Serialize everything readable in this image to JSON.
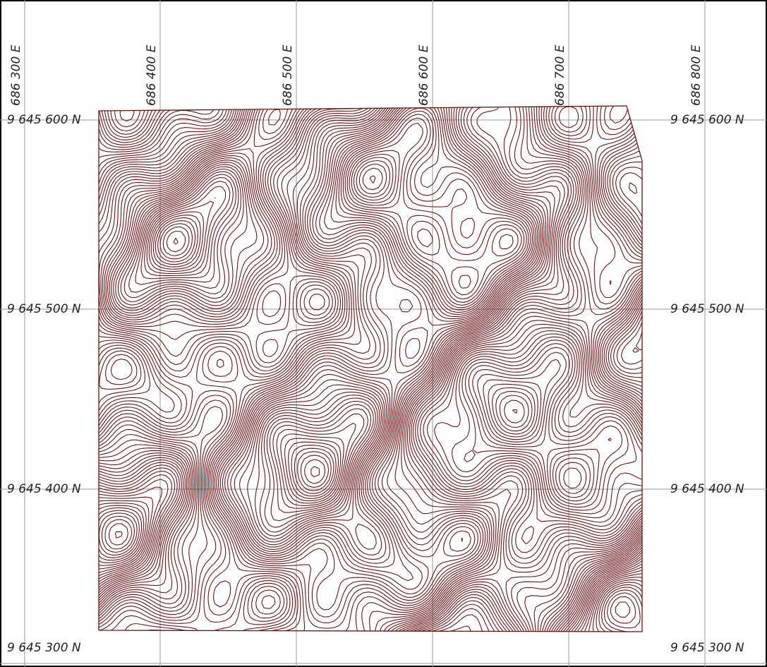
{
  "map": {
    "eastings": [
      "686 300 E",
      "686 400 E",
      "686 500 E",
      "686 600 E",
      "686 700 E",
      "686 800 E"
    ],
    "northings": [
      "9 645 600 N",
      "9 645 500 N",
      "9 645 400 N",
      "9 645 300 N"
    ]
  }
}
